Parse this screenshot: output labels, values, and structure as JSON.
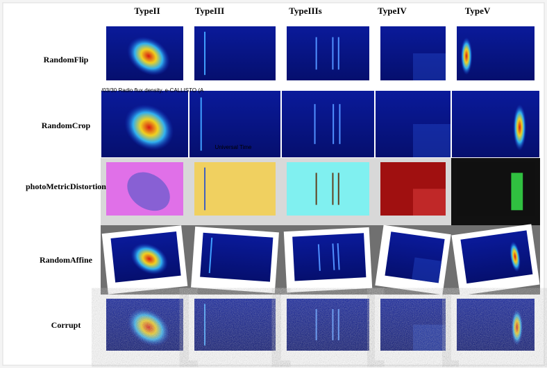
{
  "columns": [
    "TypeII",
    "TypeIII",
    "TypeIIIs",
    "TypeIV",
    "TypeV"
  ],
  "rows": [
    "RandomFlip",
    "RandomCrop",
    "photoMetricDistortion",
    "RandomAffine",
    "Corrupt"
  ],
  "crop_caption": "/03/30  Radio flux density, e-CALLISTO (A",
  "crop_axis_label": "Universal Time"
}
